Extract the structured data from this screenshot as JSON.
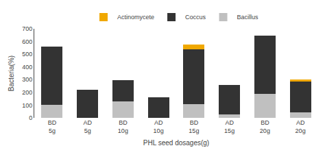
{
  "chart_data": {
    "type": "bar",
    "stacked": true,
    "categories": [
      "BD\n5g",
      "AD\n5g",
      "BD\n10g",
      "AD\n10g",
      "BD\n15g",
      "AD\n15g",
      "BD\n20g",
      "AD\n20g"
    ],
    "series": [
      {
        "name": "Bacillus",
        "color": "#c0c0c0",
        "values": [
          100,
          0,
          130,
          0,
          110,
          25,
          190,
          45
        ]
      },
      {
        "name": "Coccus",
        "color": "#333333",
        "values": [
          460,
          220,
          165,
          160,
          430,
          235,
          455,
          245
        ]
      },
      {
        "name": "Actinomycete",
        "color": "#f0a800",
        "values": [
          0,
          0,
          0,
          0,
          35,
          0,
          0,
          10
        ]
      }
    ],
    "xlabel": "PHL seed dosages(g)",
    "ylabel": "Bacteria(%)",
    "ylim": [
      0,
      700
    ],
    "yticks": [
      0,
      100,
      200,
      300,
      400,
      500,
      600,
      700
    ],
    "grid": false,
    "legend": "top"
  }
}
